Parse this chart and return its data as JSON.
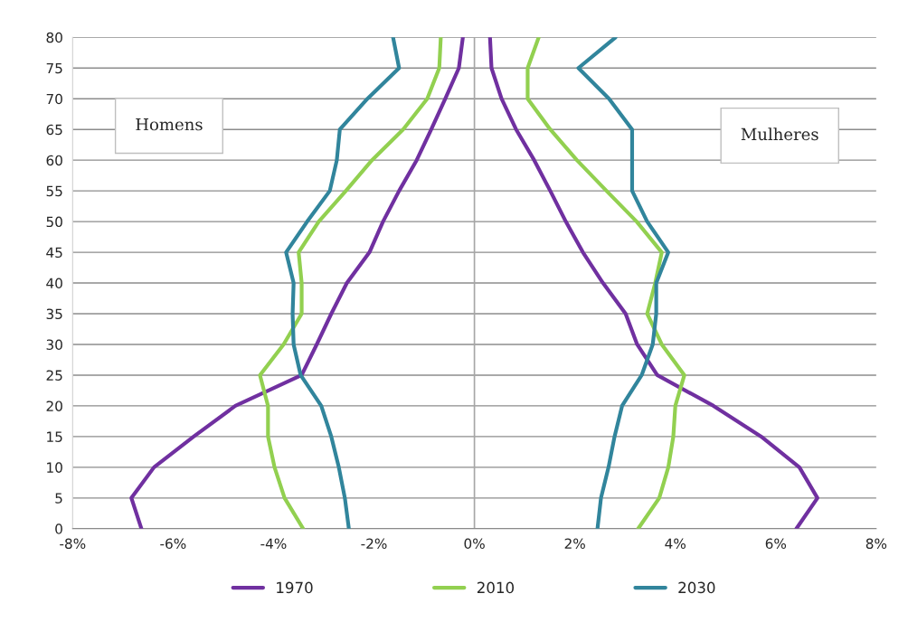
{
  "chart_data": {
    "type": "line",
    "xlim": [
      -8,
      8
    ],
    "xticks": [
      {
        "value": -8,
        "label": "-8%"
      },
      {
        "value": -6,
        "label": "-6%"
      },
      {
        "value": -4,
        "label": "-4%"
      },
      {
        "value": -2,
        "label": "-2%"
      },
      {
        "value": 0,
        "label": "0%"
      },
      {
        "value": 2,
        "label": "2%"
      },
      {
        "value": 4,
        "label": "4%"
      },
      {
        "value": 6,
        "label": "6%"
      },
      {
        "value": 8,
        "label": "8%"
      }
    ],
    "ylim": [
      0,
      80
    ],
    "yticks": [
      0,
      5,
      10,
      15,
      20,
      25,
      30,
      35,
      40,
      45,
      50,
      55,
      60,
      65,
      70,
      75,
      80
    ],
    "grid": "y",
    "legend": "bottom",
    "marker": "none",
    "line_style": "solid",
    "ref_lines": [
      {
        "axis": "x",
        "value": 0,
        "color": "#a6a6a6"
      }
    ],
    "annotations": [
      "Homens",
      "Mulheres"
    ],
    "series": [
      {
        "name": "1970",
        "color": "#7030a0",
        "x": [
          -6.63,
          -6.83,
          -6.38,
          -5.59,
          -4.76,
          -3.44,
          -3.14,
          -2.85,
          -2.54,
          -2.09,
          -1.82,
          -1.5,
          -1.15,
          -0.86,
          -0.58,
          -0.31,
          -0.23,
          null,
          6.41,
          6.83,
          6.47,
          5.71,
          4.76,
          3.64,
          3.24,
          3.01,
          2.56,
          2.16,
          1.82,
          1.51,
          1.19,
          0.83,
          0.54,
          0.34,
          0.31
        ],
        "values": [
          0,
          5,
          10,
          15,
          20,
          25,
          30,
          35,
          40,
          45,
          50,
          55,
          60,
          65,
          70,
          75,
          80,
          null,
          0,
          5,
          10,
          15,
          20,
          25,
          30,
          35,
          40,
          45,
          50,
          55,
          60,
          65,
          70,
          75,
          80
        ]
      },
      {
        "name": "2010",
        "color": "#92d050",
        "x": [
          -3.41,
          -3.78,
          -3.98,
          -4.11,
          -4.11,
          -4.27,
          -3.8,
          -3.44,
          -3.44,
          -3.5,
          -3.1,
          -2.56,
          -2.04,
          -1.42,
          -0.94,
          -0.7,
          -0.67,
          null,
          3.26,
          3.68,
          3.86,
          3.96,
          4.0,
          4.18,
          3.73,
          3.44,
          3.6,
          3.73,
          3.23,
          2.63,
          2.04,
          1.51,
          1.06,
          1.06,
          1.28
        ],
        "values": [
          0,
          5,
          10,
          15,
          20,
          25,
          30,
          35,
          40,
          45,
          50,
          55,
          60,
          65,
          70,
          75,
          80,
          null,
          0,
          5,
          10,
          15,
          20,
          25,
          30,
          35,
          40,
          45,
          50,
          55,
          60,
          65,
          70,
          75,
          80
        ]
      },
      {
        "name": "2030",
        "color": "#31859c",
        "x": [
          -2.5,
          -2.58,
          -2.7,
          -2.85,
          -3.05,
          -3.46,
          -3.6,
          -3.62,
          -3.6,
          -3.75,
          -3.33,
          -2.88,
          -2.74,
          -2.68,
          -2.13,
          -1.5,
          -1.62,
          null,
          2.45,
          2.52,
          2.67,
          2.79,
          2.94,
          3.33,
          3.55,
          3.62,
          3.62,
          3.86,
          3.44,
          3.14,
          3.14,
          3.14,
          2.68,
          2.07,
          2.81
        ],
        "values": [
          0,
          5,
          10,
          15,
          20,
          25,
          30,
          35,
          40,
          45,
          50,
          55,
          60,
          65,
          70,
          75,
          80,
          null,
          0,
          5,
          10,
          15,
          20,
          25,
          30,
          35,
          40,
          45,
          50,
          55,
          60,
          65,
          70,
          75,
          80
        ]
      }
    ]
  }
}
